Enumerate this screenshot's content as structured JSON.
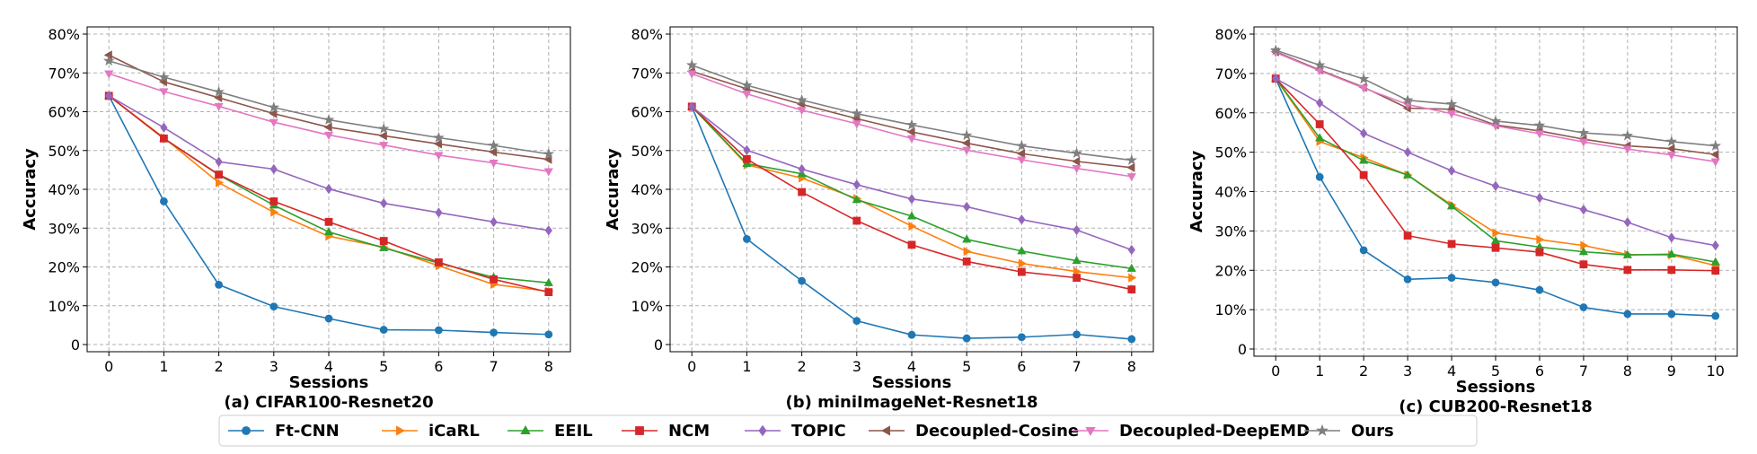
{
  "chart_data": [
    {
      "type": "line",
      "title": "(a) CIFAR100-Resnet20",
      "xlabel": "Sessions",
      "ylabel": "Accuracy",
      "x": [
        0,
        1,
        2,
        3,
        4,
        5,
        6,
        7,
        8
      ],
      "xticks": [
        "0",
        "1",
        "2",
        "3",
        "4",
        "5",
        "6",
        "7",
        "8"
      ],
      "ylim": [
        0,
        80
      ],
      "yticks": [
        "0",
        "10%",
        "20%",
        "30%",
        "40%",
        "50%",
        "60%",
        "70%",
        "80%"
      ],
      "grid": true,
      "series": [
        {
          "name": "Ft-CNN",
          "values": [
            64.1,
            36.9,
            15.4,
            9.8,
            6.7,
            3.8,
            3.7,
            3.1,
            2.6
          ]
        },
        {
          "name": "iCaRL",
          "values": [
            64.1,
            53.3,
            41.7,
            34.1,
            27.9,
            25.1,
            20.3,
            15.5,
            13.7
          ]
        },
        {
          "name": "EEIL",
          "values": [
            64.1,
            53.1,
            43.7,
            35.9,
            29.0,
            24.9,
            21.0,
            17.3,
            15.9
          ]
        },
        {
          "name": "NCM",
          "values": [
            64.1,
            53.1,
            43.8,
            36.9,
            31.6,
            26.7,
            21.2,
            16.8,
            13.5
          ]
        },
        {
          "name": "TOPIC",
          "values": [
            64.1,
            55.9,
            47.1,
            45.2,
            40.1,
            36.4,
            34.0,
            31.6,
            29.4
          ]
        },
        {
          "name": "Decoupled-Cosine",
          "values": [
            74.6,
            67.7,
            63.6,
            59.5,
            56.0,
            53.8,
            51.7,
            49.6,
            47.7
          ]
        },
        {
          "name": "Decoupled-DeepEMD",
          "values": [
            69.8,
            65.2,
            61.4,
            57.3,
            54.0,
            51.4,
            48.8,
            46.8,
            44.6
          ]
        },
        {
          "name": "Ours",
          "values": [
            73.1,
            68.9,
            65.1,
            61.1,
            57.9,
            55.6,
            53.3,
            51.3,
            49.1
          ]
        }
      ]
    },
    {
      "type": "line",
      "title": "(b) miniImageNet-Resnet18",
      "xlabel": "Sessions",
      "ylabel": "Accuracy",
      "x": [
        0,
        1,
        2,
        3,
        4,
        5,
        6,
        7,
        8
      ],
      "xticks": [
        "0",
        "1",
        "2",
        "3",
        "4",
        "5",
        "6",
        "7",
        "8"
      ],
      "ylim": [
        0,
        80
      ],
      "yticks": [
        "0",
        "10%",
        "20%",
        "30%",
        "40%",
        "50%",
        "60%",
        "70%",
        "80%"
      ],
      "grid": true,
      "series": [
        {
          "name": "Ft-CNN",
          "values": [
            61.3,
            27.2,
            16.4,
            6.1,
            2.5,
            1.6,
            1.9,
            2.6,
            1.4
          ]
        },
        {
          "name": "iCaRL",
          "values": [
            61.3,
            46.3,
            42.9,
            37.6,
            30.5,
            24.0,
            20.9,
            18.8,
            17.2
          ]
        },
        {
          "name": "EEIL",
          "values": [
            61.3,
            46.6,
            44.0,
            37.3,
            33.1,
            27.1,
            24.1,
            21.6,
            19.6
          ]
        },
        {
          "name": "NCM",
          "values": [
            61.3,
            47.8,
            39.3,
            31.9,
            25.7,
            21.4,
            18.7,
            17.2,
            14.2
          ]
        },
        {
          "name": "TOPIC",
          "values": [
            61.3,
            50.1,
            45.2,
            41.2,
            37.5,
            35.5,
            32.2,
            29.5,
            24.4
          ]
        },
        {
          "name": "Decoupled-Cosine",
          "values": [
            70.4,
            65.9,
            61.9,
            58.2,
            54.8,
            51.9,
            49.2,
            47.2,
            45.6
          ]
        },
        {
          "name": "Decoupled-DeepEMD",
          "values": [
            69.8,
            64.6,
            60.4,
            56.9,
            53.1,
            50.1,
            47.6,
            45.4,
            43.3
          ]
        },
        {
          "name": "Ours",
          "values": [
            72.0,
            66.8,
            63.0,
            59.5,
            56.6,
            53.9,
            51.2,
            49.3,
            47.5
          ]
        }
      ]
    },
    {
      "type": "line",
      "title": "(c) CUB200-Resnet18",
      "xlabel": "Sessions",
      "ylabel": "Accuracy",
      "x": [
        0,
        1,
        2,
        3,
        4,
        5,
        6,
        7,
        8,
        9,
        10
      ],
      "xticks": [
        "0",
        "1",
        "2",
        "3",
        "4",
        "5",
        "6",
        "7",
        "8",
        "9",
        "10"
      ],
      "ylim": [
        0,
        80
      ],
      "yticks": [
        "0",
        "10%",
        "20%",
        "30%",
        "40%",
        "50%",
        "60%",
        "70%",
        "80%"
      ],
      "grid": true,
      "series": [
        {
          "name": "Ft-CNN",
          "values": [
            68.7,
            43.7,
            25.1,
            17.7,
            18.1,
            16.9,
            15.0,
            10.6,
            8.9,
            8.9,
            8.4
          ]
        },
        {
          "name": "iCaRL",
          "values": [
            68.7,
            52.7,
            48.6,
            44.2,
            36.6,
            29.5,
            27.8,
            26.3,
            24.0,
            23.9,
            21.2
          ]
        },
        {
          "name": "EEIL",
          "values": [
            68.7,
            53.6,
            47.9,
            44.2,
            36.3,
            27.5,
            25.9,
            24.7,
            23.9,
            24.1,
            22.1
          ]
        },
        {
          "name": "NCM",
          "values": [
            68.7,
            57.1,
            44.2,
            28.8,
            26.7,
            25.7,
            24.6,
            21.5,
            20.1,
            20.1,
            19.9
          ]
        },
        {
          "name": "TOPIC",
          "values": [
            68.7,
            62.5,
            54.8,
            50.0,
            45.3,
            41.4,
            38.4,
            35.4,
            32.2,
            28.3,
            26.3
          ]
        },
        {
          "name": "Decoupled-Cosine",
          "values": [
            75.5,
            70.9,
            66.5,
            61.2,
            60.9,
            56.9,
            55.4,
            53.3,
            51.6,
            50.9,
            49.4
          ]
        },
        {
          "name": "Decoupled-DeepEMD",
          "values": [
            75.3,
            70.7,
            66.3,
            62.1,
            59.8,
            56.7,
            54.7,
            52.6,
            50.8,
            49.3,
            47.6
          ]
        },
        {
          "name": "Ours",
          "values": [
            75.9,
            72.1,
            68.6,
            63.2,
            62.2,
            57.9,
            56.8,
            54.9,
            54.2,
            52.7,
            51.6
          ]
        }
      ]
    }
  ],
  "legend": {
    "position": "bottom-center",
    "entries": [
      {
        "name": "Ft-CNN",
        "color": "#1f77b4",
        "marker": "circle"
      },
      {
        "name": "iCaRL",
        "color": "#ff7f0e",
        "marker": "triangle-right"
      },
      {
        "name": "EEIL",
        "color": "#2ca02c",
        "marker": "triangle-up"
      },
      {
        "name": "NCM",
        "color": "#d62728",
        "marker": "square"
      },
      {
        "name": "TOPIC",
        "color": "#9467bd",
        "marker": "diamond"
      },
      {
        "name": "Decoupled-Cosine",
        "color": "#8c564b",
        "marker": "triangle-left"
      },
      {
        "name": "Decoupled-DeepEMD",
        "color": "#e377c2",
        "marker": "triangle-down"
      },
      {
        "name": "Ours",
        "color": "#7f7f7f",
        "marker": "star"
      }
    ]
  }
}
